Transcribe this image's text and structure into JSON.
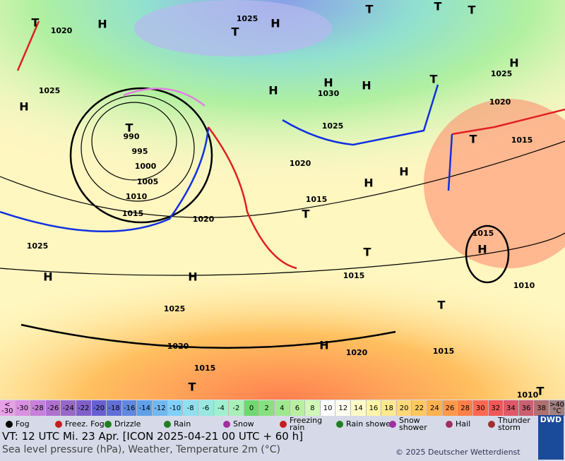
{
  "map": {
    "isobar_labels": [
      "1020",
      "1025",
      "1025",
      "1030",
      "1020",
      "1025",
      "1025",
      "1015",
      "990",
      "995",
      "1000",
      "1005",
      "1010",
      "1015",
      "1020",
      "1020",
      "1015",
      "1025",
      "1015",
      "1015",
      "1010",
      "1025",
      "1020",
      "1020",
      "1015",
      "1015",
      "1010"
    ],
    "pressure_centers": [
      "H",
      "H",
      "T",
      "H",
      "H",
      "H",
      "T",
      "H",
      "H",
      "T",
      "T",
      "T",
      "T",
      "H",
      "H",
      "T",
      "T",
      "H",
      "T",
      "H",
      "H",
      "T",
      "H",
      "T",
      "T",
      "T"
    ]
  },
  "temperature_scale": {
    "labels": [
      "< -30",
      "-30",
      "-28",
      "-26",
      "-24",
      "-22",
      "-20",
      "-18",
      "-16",
      "-14",
      "-12",
      "-10",
      "-8",
      "-6",
      "-4",
      "-2",
      "0",
      "2",
      "4",
      "6",
      "8",
      "10",
      "12",
      "14",
      "16",
      "18",
      "20",
      "22",
      "24",
      "26",
      "28",
      "30",
      "32",
      "34",
      "36",
      "38",
      ">40 °C"
    ],
    "colors": [
      "#e8a0e8",
      "#d890e0",
      "#c880d8",
      "#b070d0",
      "#9868c8",
      "#8060c8",
      "#6860d0",
      "#6070d8",
      "#6088e0",
      "#60a0e8",
      "#70b8f0",
      "#80d0f8",
      "#90e0f0",
      "#98e8e0",
      "#a0f0d0",
      "#a8f0b8",
      "#70d870",
      "#88e080",
      "#a0e890",
      "#b8f0a0",
      "#d0f8b8",
      "#ffffff",
      "#fffff0",
      "#fffcc8",
      "#fff4a8",
      "#ffe890",
      "#ffd878",
      "#ffc860",
      "#ffb050",
      "#ff9848",
      "#ff8048",
      "#ff6850",
      "#f05858",
      "#e05868",
      "#c86070",
      "#b07070",
      "#a08080"
    ]
  },
  "symbol_legend": [
    "Fog",
    "Freez. Fog",
    "Drizzle",
    "Rain",
    "Snow",
    "Freezing rain",
    "Rain shower",
    "Snow shower",
    "Hail",
    "Thunder storm"
  ],
  "footer": {
    "valid_time": "VT: 12 UTC Mi.  23 Apr. [ICON 2025-04-21  00 UTC + 60 h]",
    "description": "Sea level pressure (hPa), Weather, Temperature 2m (°C)",
    "copyright": "© 2025 Deutscher Wetterdienst",
    "logo": "DWD"
  }
}
